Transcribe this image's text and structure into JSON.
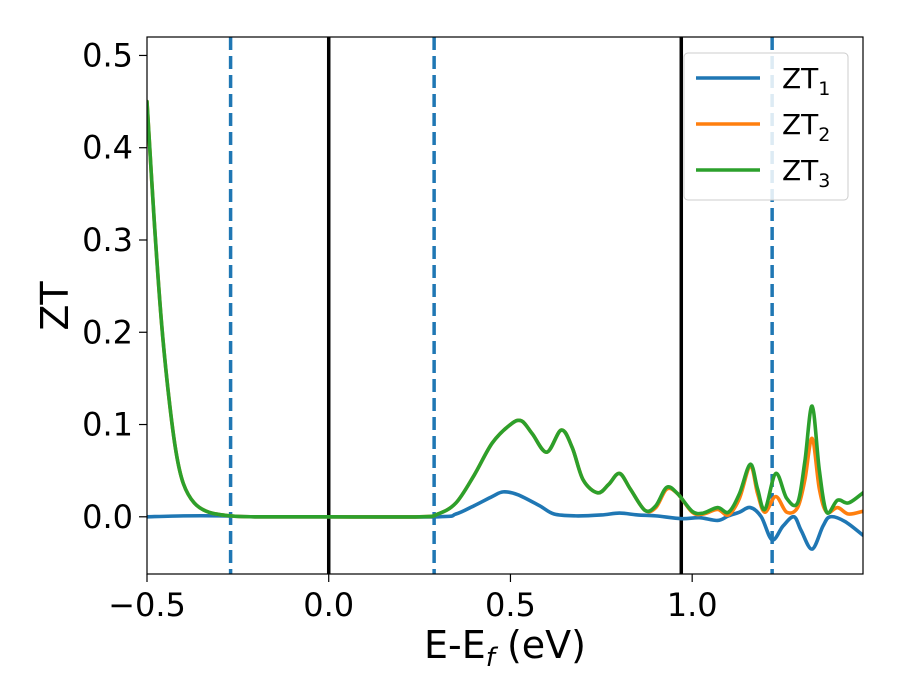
{
  "chart_data": {
    "type": "line",
    "xlabel": "E-E",
    "xlabel_subscript": "f",
    "xlabel_unit": " (eV)",
    "ylabel": "ZT",
    "xlim": [
      -0.5,
      1.47
    ],
    "ylim": [
      -0.062,
      0.52
    ],
    "xticks": [
      -0.5,
      0.0,
      0.5,
      1.0
    ],
    "xtick_labels": [
      "−0.5",
      "0.0",
      "0.5",
      "1.0"
    ],
    "yticks": [
      0.0,
      0.1,
      0.2,
      0.3,
      0.4,
      0.5
    ],
    "ytick_labels": [
      "0.0",
      "0.1",
      "0.2",
      "0.3",
      "0.4",
      "0.5"
    ],
    "grid": false,
    "legend_position": "top-right",
    "vertical_lines": [
      {
        "x": -0.27,
        "style": "dashed",
        "color": "#1f77b4"
      },
      {
        "x": 0.0,
        "style": "solid",
        "color": "#000000"
      },
      {
        "x": 0.29,
        "style": "dashed",
        "color": "#1f77b4"
      },
      {
        "x": 0.97,
        "style": "solid",
        "color": "#000000"
      },
      {
        "x": 1.22,
        "style": "dashed",
        "color": "#1f77b4"
      }
    ],
    "series": [
      {
        "name": "ZT",
        "name_subscript": "1",
        "color": "#1f77b4",
        "points": [
          [
            -0.5,
            0.0
          ],
          [
            -0.4,
            0.001
          ],
          [
            -0.3,
            0.001
          ],
          [
            -0.2,
            0.0
          ],
          [
            0.0,
            0.0
          ],
          [
            0.3,
            0.0
          ],
          [
            0.35,
            0.003
          ],
          [
            0.4,
            0.012
          ],
          [
            0.45,
            0.022
          ],
          [
            0.48,
            0.027
          ],
          [
            0.52,
            0.024
          ],
          [
            0.58,
            0.012
          ],
          [
            0.62,
            0.003
          ],
          [
            0.68,
            0.001
          ],
          [
            0.75,
            0.002
          ],
          [
            0.8,
            0.004
          ],
          [
            0.85,
            0.002
          ],
          [
            0.9,
            0.001
          ],
          [
            0.97,
            -0.002
          ],
          [
            1.02,
            -0.001
          ],
          [
            1.07,
            -0.004
          ],
          [
            1.1,
            0.001
          ],
          [
            1.13,
            0.005
          ],
          [
            1.16,
            0.01
          ],
          [
            1.19,
            0.0
          ],
          [
            1.22,
            -0.025
          ],
          [
            1.25,
            -0.01
          ],
          [
            1.28,
            0.0
          ],
          [
            1.3,
            -0.015
          ],
          [
            1.33,
            -0.035
          ],
          [
            1.36,
            -0.01
          ],
          [
            1.38,
            0.0
          ],
          [
            1.42,
            -0.005
          ],
          [
            1.47,
            -0.02
          ]
        ]
      },
      {
        "name": "ZT",
        "name_subscript": "2",
        "color": "#ff7f0e",
        "points": [
          [
            -0.5,
            0.45
          ],
          [
            -0.48,
            0.32
          ],
          [
            -0.46,
            0.21
          ],
          [
            -0.44,
            0.13
          ],
          [
            -0.42,
            0.07
          ],
          [
            -0.4,
            0.036
          ],
          [
            -0.37,
            0.015
          ],
          [
            -0.33,
            0.005
          ],
          [
            -0.27,
            0.001
          ],
          [
            -0.2,
            0.0
          ],
          [
            0.0,
            0.0
          ],
          [
            0.25,
            0.0
          ],
          [
            0.3,
            0.003
          ],
          [
            0.35,
            0.015
          ],
          [
            0.4,
            0.045
          ],
          [
            0.45,
            0.08
          ],
          [
            0.5,
            0.1
          ],
          [
            0.53,
            0.104
          ],
          [
            0.56,
            0.09
          ],
          [
            0.6,
            0.07
          ],
          [
            0.64,
            0.094
          ],
          [
            0.67,
            0.075
          ],
          [
            0.7,
            0.04
          ],
          [
            0.74,
            0.026
          ],
          [
            0.77,
            0.035
          ],
          [
            0.8,
            0.047
          ],
          [
            0.83,
            0.03
          ],
          [
            0.87,
            0.007
          ],
          [
            0.9,
            0.01
          ],
          [
            0.93,
            0.03
          ],
          [
            0.96,
            0.025
          ],
          [
            1.0,
            0.005
          ],
          [
            1.03,
            0.003
          ],
          [
            1.07,
            0.008
          ],
          [
            1.1,
            0.002
          ],
          [
            1.13,
            0.02
          ],
          [
            1.16,
            0.055
          ],
          [
            1.18,
            0.025
          ],
          [
            1.2,
            0.005
          ],
          [
            1.23,
            0.022
          ],
          [
            1.26,
            0.005
          ],
          [
            1.29,
            0.01
          ],
          [
            1.31,
            0.04
          ],
          [
            1.33,
            0.085
          ],
          [
            1.35,
            0.03
          ],
          [
            1.37,
            0.005
          ],
          [
            1.4,
            0.01
          ],
          [
            1.43,
            0.003
          ],
          [
            1.47,
            0.006
          ]
        ]
      },
      {
        "name": "ZT",
        "name_subscript": "3",
        "color": "#2ca02c",
        "points": [
          [
            -0.5,
            0.45
          ],
          [
            -0.48,
            0.32
          ],
          [
            -0.46,
            0.21
          ],
          [
            -0.44,
            0.13
          ],
          [
            -0.42,
            0.07
          ],
          [
            -0.4,
            0.036
          ],
          [
            -0.37,
            0.015
          ],
          [
            -0.33,
            0.005
          ],
          [
            -0.27,
            0.001
          ],
          [
            -0.2,
            0.0
          ],
          [
            0.0,
            0.0
          ],
          [
            0.25,
            0.0
          ],
          [
            0.3,
            0.003
          ],
          [
            0.35,
            0.015
          ],
          [
            0.4,
            0.045
          ],
          [
            0.45,
            0.08
          ],
          [
            0.5,
            0.1
          ],
          [
            0.53,
            0.104
          ],
          [
            0.56,
            0.09
          ],
          [
            0.6,
            0.07
          ],
          [
            0.64,
            0.094
          ],
          [
            0.67,
            0.075
          ],
          [
            0.7,
            0.04
          ],
          [
            0.74,
            0.026
          ],
          [
            0.77,
            0.035
          ],
          [
            0.8,
            0.047
          ],
          [
            0.83,
            0.03
          ],
          [
            0.87,
            0.007
          ],
          [
            0.9,
            0.012
          ],
          [
            0.93,
            0.032
          ],
          [
            0.96,
            0.025
          ],
          [
            1.0,
            0.006
          ],
          [
            1.03,
            0.004
          ],
          [
            1.07,
            0.01
          ],
          [
            1.1,
            0.005
          ],
          [
            1.13,
            0.025
          ],
          [
            1.16,
            0.057
          ],
          [
            1.18,
            0.03
          ],
          [
            1.2,
            0.008
          ],
          [
            1.23,
            0.047
          ],
          [
            1.26,
            0.02
          ],
          [
            1.29,
            0.015
          ],
          [
            1.31,
            0.06
          ],
          [
            1.33,
            0.12
          ],
          [
            1.35,
            0.05
          ],
          [
            1.37,
            0.005
          ],
          [
            1.4,
            0.018
          ],
          [
            1.43,
            0.015
          ],
          [
            1.47,
            0.026
          ]
        ]
      }
    ]
  }
}
